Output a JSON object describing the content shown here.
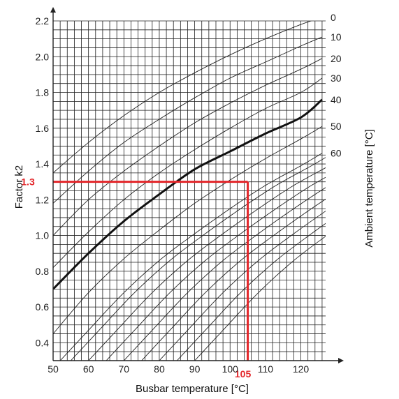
{
  "chart_data": {
    "type": "line",
    "title": "",
    "xlabel": "Busbar temperature [°C]",
    "ylabel": "Factor k2",
    "y2label": "Ambient temperature [°C]",
    "xlim": [
      50,
      127
    ],
    "ylim": [
      0.3,
      2.2
    ],
    "x_ticks": [
      "50",
      "60",
      "70",
      "80",
      "90",
      "100",
      "110",
      "120"
    ],
    "y_ticks": [
      "0.4",
      "0.6",
      "0.8",
      "1.0",
      "1.2",
      "1.4",
      "1.6",
      "1.8",
      "2.0",
      "2.2"
    ],
    "grid": true,
    "grid_x_step": 2,
    "grid_y_step": 0.05,
    "series": [
      {
        "name": "0",
        "x": [
          50,
          60,
          70,
          80,
          90,
          100,
          110,
          120,
          126
        ],
        "y": [
          1.35,
          1.52,
          1.67,
          1.8,
          1.91,
          2.01,
          2.1,
          2.18,
          2.22
        ]
      },
      {
        "name": "10",
        "x": [
          50,
          60,
          70,
          80,
          90,
          100,
          110,
          120,
          126
        ],
        "y": [
          1.18,
          1.36,
          1.52,
          1.65,
          1.77,
          1.88,
          1.97,
          2.06,
          2.11
        ]
      },
      {
        "name": "20",
        "x": [
          50,
          60,
          70,
          80,
          90,
          100,
          110,
          120,
          126
        ],
        "y": [
          1.0,
          1.2,
          1.36,
          1.5,
          1.63,
          1.74,
          1.84,
          1.93,
          1.99
        ]
      },
      {
        "name": "30",
        "x": [
          50,
          60,
          70,
          80,
          90,
          100,
          110,
          120,
          126
        ],
        "y": [
          0.82,
          1.02,
          1.2,
          1.35,
          1.48,
          1.6,
          1.71,
          1.8,
          1.88
        ]
      },
      {
        "name": "40",
        "x": [
          50,
          60,
          70,
          80,
          90,
          100,
          110,
          120,
          126
        ],
        "y": [
          0.7,
          0.9,
          1.08,
          1.23,
          1.37,
          1.47,
          1.57,
          1.66,
          1.76
        ],
        "highlight": true
      },
      {
        "name": "50",
        "x": [
          50,
          60,
          70,
          80,
          90,
          100,
          110,
          120,
          126
        ],
        "y": [
          0.45,
          0.68,
          0.87,
          1.03,
          1.18,
          1.31,
          1.43,
          1.54,
          1.61
        ]
      },
      {
        "name": "60",
        "x": [
          52,
          60,
          70,
          80,
          90,
          100,
          110,
          120,
          126
        ],
        "y": [
          0.3,
          0.47,
          0.68,
          0.86,
          1.01,
          1.15,
          1.28,
          1.39,
          1.46
        ]
      }
    ],
    "extra_curve_starts": [
      55,
      60,
      65,
      70,
      75,
      80,
      85,
      90
    ],
    "annotation": {
      "x": 105,
      "x_label": "105",
      "y": 1.3,
      "y_label": "1.3",
      "color": "#e3262a"
    },
    "axis_color": "#222222",
    "grid_color": "#222222",
    "curve_color": "#222222",
    "highlight_color": "#111111"
  }
}
